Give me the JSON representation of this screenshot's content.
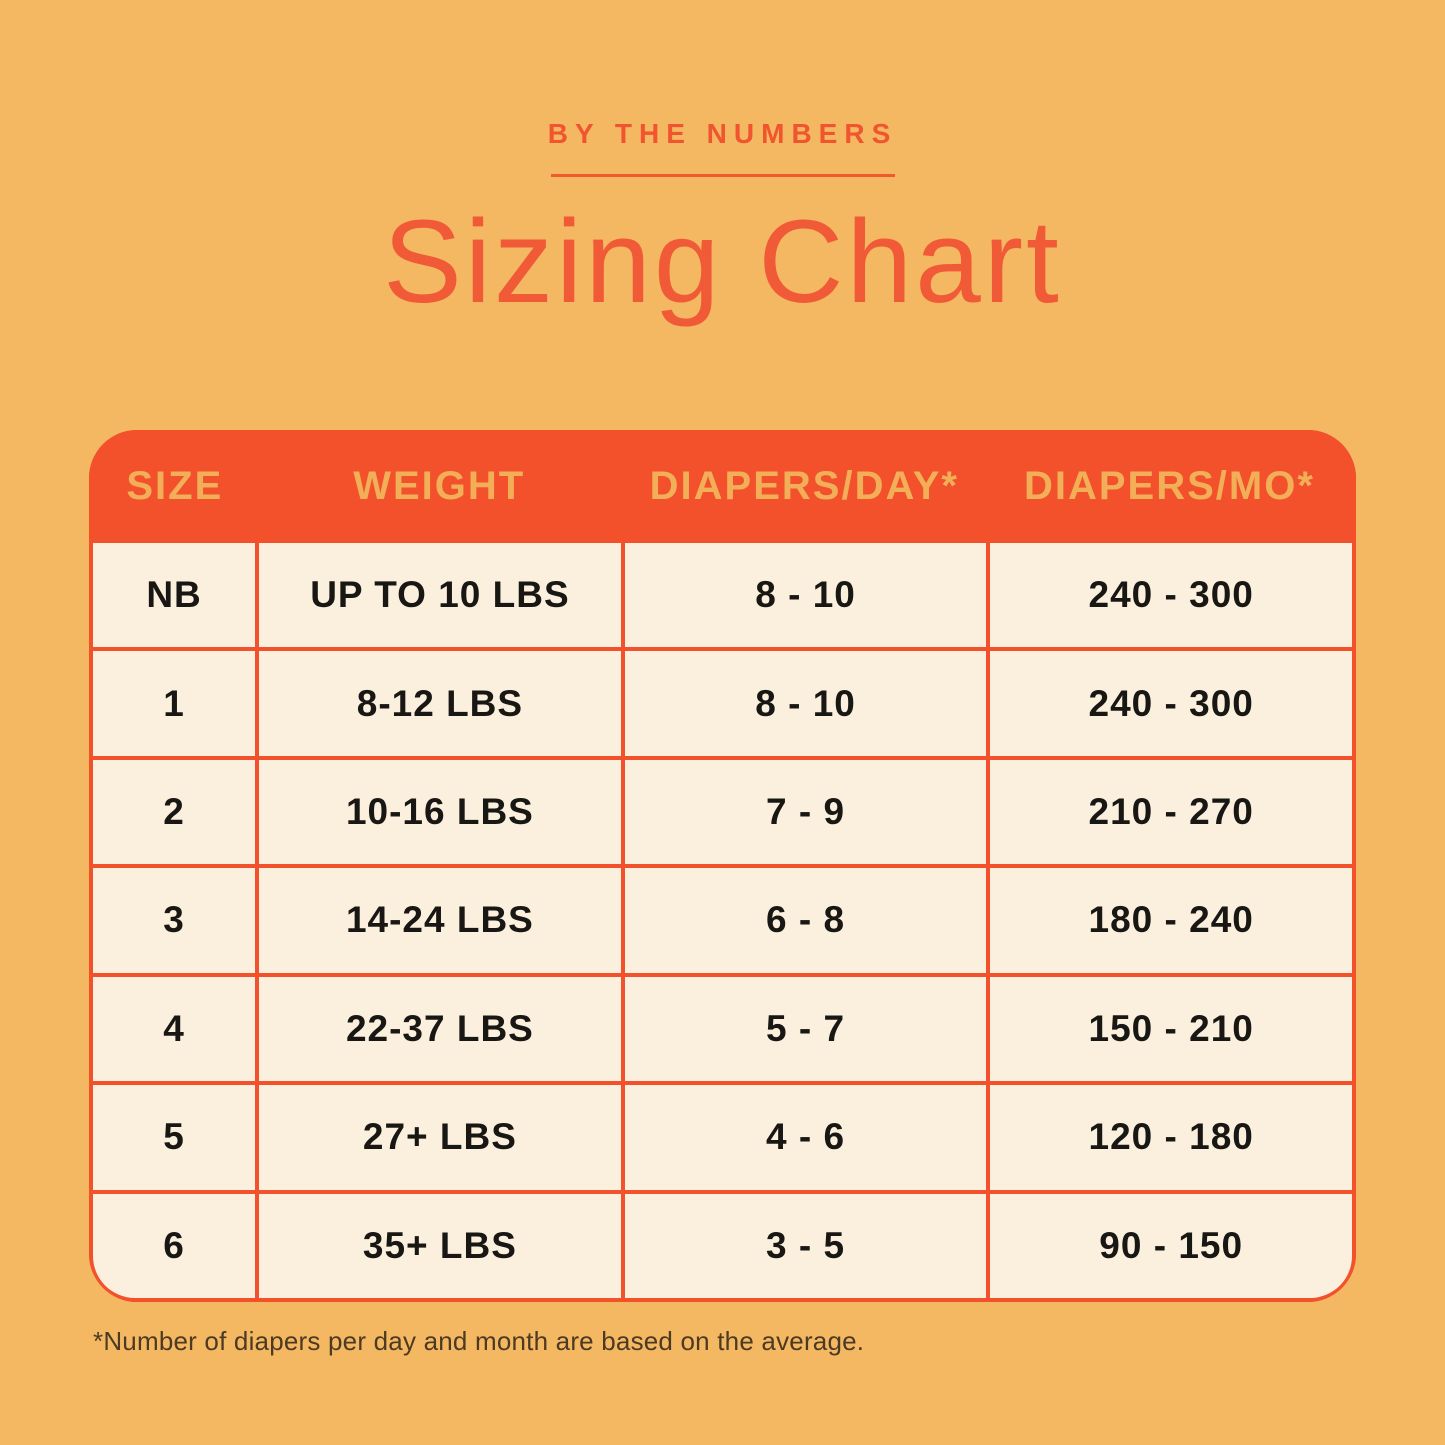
{
  "page": {
    "eyebrow": "BY THE NUMBERS",
    "title": "Sizing Chart",
    "footnote": "*Number of diapers per day and month are based on the average."
  },
  "colors": {
    "background": "#F4B863",
    "accent_red": "#F2512C",
    "title_red": "#F15A36",
    "header_gold": "#F3AF58",
    "table_cream": "#FBF0DD",
    "cell_text": "#191714",
    "footnote_text": "#4D3A22"
  },
  "table": {
    "headers": [
      "SIZE",
      "WEIGHT",
      "DIAPERS/DAY*",
      "DIAPERS/MO*"
    ],
    "rows": [
      {
        "size": "NB",
        "weight": "UP TO 10 LBS",
        "per_day": "8 - 10",
        "per_month": "240 - 300"
      },
      {
        "size": "1",
        "weight": "8-12 LBS",
        "per_day": "8 - 10",
        "per_month": "240 - 300"
      },
      {
        "size": "2",
        "weight": "10-16 LBS",
        "per_day": "7 - 9",
        "per_month": "210 - 270"
      },
      {
        "size": "3",
        "weight": "14-24 LBS",
        "per_day": "6 - 8",
        "per_month": "180 - 240"
      },
      {
        "size": "4",
        "weight": "22-37 LBS",
        "per_day": "5 - 7",
        "per_month": "150 - 210"
      },
      {
        "size": "5",
        "weight": "27+ LBS",
        "per_day": "4 - 6",
        "per_month": "120 - 180"
      },
      {
        "size": "6",
        "weight": "35+ LBS",
        "per_day": "3 - 5",
        "per_month": "90 - 150"
      }
    ]
  },
  "chart_data": {
    "type": "table",
    "title": "Sizing Chart",
    "subtitle": "BY THE NUMBERS",
    "columns": [
      "SIZE",
      "WEIGHT",
      "DIAPERS/DAY*",
      "DIAPERS/MO*"
    ],
    "rows": [
      [
        "NB",
        "UP TO 10 LBS",
        "8 - 10",
        "240 - 300"
      ],
      [
        "1",
        "8-12 LBS",
        "8 - 10",
        "240 - 300"
      ],
      [
        "2",
        "10-16 LBS",
        "7 - 9",
        "210 - 270"
      ],
      [
        "3",
        "14-24 LBS",
        "6 - 8",
        "180 - 240"
      ],
      [
        "4",
        "22-37 LBS",
        "5 - 7",
        "150 - 210"
      ],
      [
        "5",
        "27+ LBS",
        "4 - 6",
        "120 - 180"
      ],
      [
        "6",
        "35+ LBS",
        "3 - 5",
        "90 - 150"
      ]
    ],
    "footnote": "*Number of diapers per day and month are based on the average."
  }
}
